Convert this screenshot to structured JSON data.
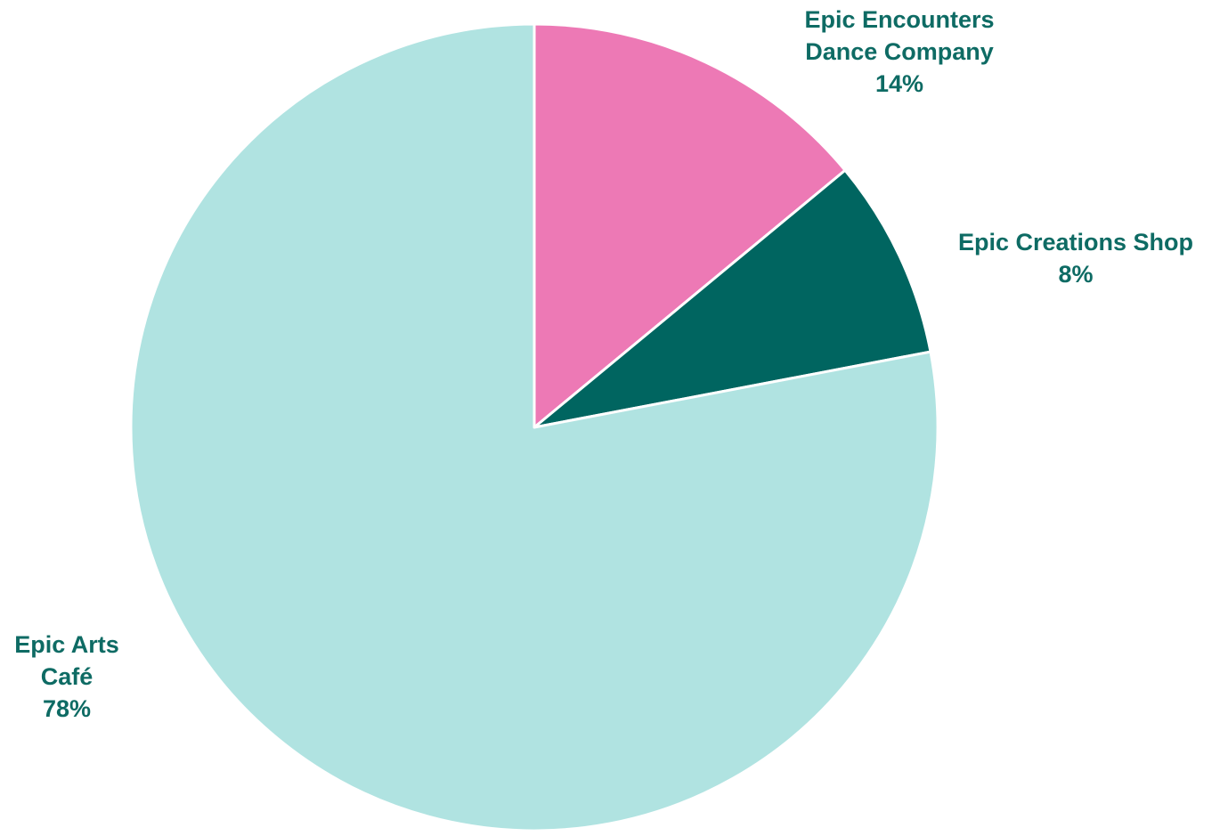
{
  "chart_data": {
    "type": "pie",
    "slices": [
      {
        "name_lines": [
          "Epic Encounters",
          "Dance Company"
        ],
        "value": 14,
        "label": "14%",
        "color": "#ed79b5"
      },
      {
        "name_lines": [
          "Epic Creations Shop"
        ],
        "value": 8,
        "label": "8%",
        "color": "#006560"
      },
      {
        "name_lines": [
          "Epic Arts",
          "Café"
        ],
        "value": 78,
        "label": "78%",
        "color": "#b0e3e1"
      }
    ],
    "start_angle": "12 o'clock",
    "direction": "clockwise",
    "label_color": "#0e6b64",
    "legend": "none"
  }
}
